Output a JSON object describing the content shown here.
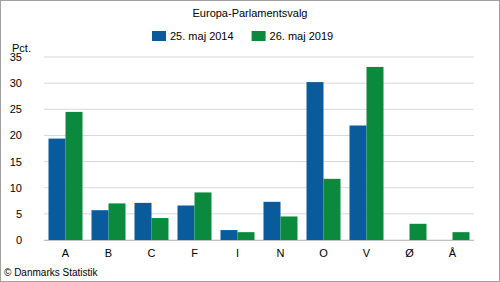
{
  "chart_data": {
    "type": "bar",
    "title": "Europa-Parlamentsvalg",
    "y_label": "Pct.",
    "annotations": [
      "© Danmarks Statistik"
    ],
    "categories": [
      "A",
      "B",
      "C",
      "F",
      "I",
      "N",
      "O",
      "V",
      "Ø",
      "Å"
    ],
    "series": [
      {
        "name": "25. maj 2014",
        "color": "#0a5b9c",
        "values": [
          19.4,
          5.7,
          7.1,
          6.6,
          1.9,
          7.3,
          30.2,
          21.9,
          null,
          null
        ]
      },
      {
        "name": "26. maj 2019",
        "color": "#0b8a3e",
        "values": [
          24.5,
          7.0,
          4.2,
          9.1,
          1.5,
          4.5,
          11.7,
          33.1,
          3.1,
          1.5
        ]
      }
    ],
    "ylim": [
      0,
      35
    ],
    "yticks": [
      0,
      5,
      10,
      15,
      20,
      25,
      30,
      35
    ],
    "grid": true,
    "legend": "top"
  }
}
